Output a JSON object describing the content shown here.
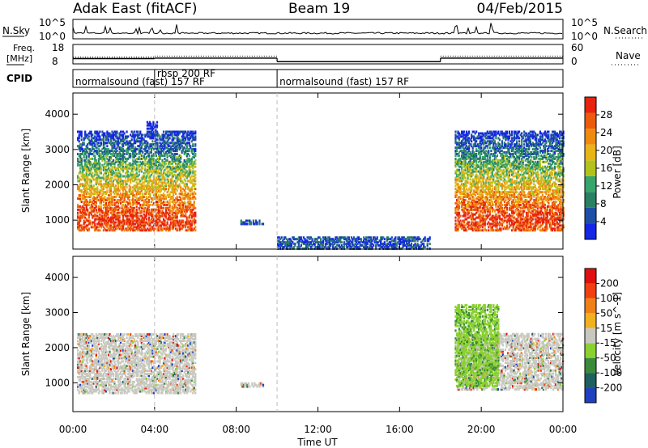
{
  "header": {
    "station": "Adak East (fitACF)",
    "beam": "Beam 19",
    "date": "04/Feb/2015"
  },
  "time_axis": {
    "label": "Time UT",
    "ticks": [
      "00:00",
      "04:00",
      "08:00",
      "12:00",
      "16:00",
      "20:00",
      "00:00"
    ],
    "range_hours": [
      0,
      24
    ]
  },
  "panels": {
    "nsky": {
      "left_label": "N.Sky",
      "left_ticks": [
        "10^5",
        "10^0"
      ],
      "right_label": "N.Search",
      "right_ticks": [
        "10^5",
        "10^0"
      ]
    },
    "freq": {
      "left_label_1": "Freq.",
      "left_label_2": "[MHz]",
      "left_ticks": [
        "18",
        "8"
      ],
      "right_label": "Nave",
      "right_ticks": [
        "60",
        "0"
      ],
      "freq_steps": [
        {
          "t0": 0,
          "t1": 4,
          "value": 10.4
        },
        {
          "t0": 4,
          "t1": 10,
          "value": 10.7
        },
        {
          "t0": 10,
          "t1": 18,
          "value": 8.4
        },
        {
          "t0": 18,
          "t1": 24,
          "value": 10.7
        }
      ],
      "nave_steps": [
        {
          "t0": 0,
          "t1": 4,
          "value": 20
        },
        {
          "t0": 4,
          "t1": 10,
          "value": 24
        },
        {
          "t0": 10,
          "t1": 18,
          "value": 3
        },
        {
          "t0": 18,
          "t1": 24,
          "value": 24
        }
      ]
    },
    "cpid": {
      "label": "CPID",
      "segments": [
        {
          "t0": 0,
          "t1": 4,
          "text": "normalsound (fast) 157 RF"
        },
        {
          "t0": 4,
          "t1": 10,
          "text": "rbsp 200 RF"
        },
        {
          "t0": 10,
          "t1": 24,
          "text": "normalsound (fast) 157 RF"
        }
      ]
    }
  },
  "chart_data": [
    {
      "type": "heatmap",
      "name": "power",
      "ylabel": "Slant Range [km]",
      "yticks": [
        1000,
        2000,
        3000,
        4000
      ],
      "ylim": [
        180,
        4600
      ],
      "xlim": [
        0,
        24
      ],
      "colorbar": {
        "label": "Power [dB]",
        "ticks": [
          4,
          8,
          12,
          16,
          20,
          24,
          28
        ],
        "range": [
          0,
          32
        ],
        "colors": [
          "#1426e6",
          "#1e4fa6",
          "#2a8064",
          "#38a56a",
          "#b3c21a",
          "#e8b416",
          "#ef8a10",
          "#ec5a0c",
          "#e8230f"
        ]
      },
      "regions": [
        {
          "t0": 0.2,
          "t1": 6.0,
          "r0": 700,
          "r1": 3500,
          "level": 22
        },
        {
          "t0": 3.6,
          "t1": 4.1,
          "r0": 3400,
          "r1": 3800,
          "level": 10
        },
        {
          "t0": 8.2,
          "t1": 9.3,
          "r0": 880,
          "r1": 1000,
          "level": 2
        },
        {
          "t0": 10.0,
          "t1": 17.5,
          "r0": 180,
          "r1": 500,
          "level": 6
        },
        {
          "t0": 18.7,
          "t1": 24.0,
          "r0": 700,
          "r1": 3500,
          "level": 22
        }
      ]
    },
    {
      "type": "heatmap",
      "name": "velocity",
      "ylabel": "Slant Range [km]",
      "yticks": [
        1000,
        2000,
        3000,
        4000
      ],
      "ylim": [
        180,
        4600
      ],
      "xlim": [
        0,
        24
      ],
      "colorbar": {
        "label": "Velocity [m s^-1]",
        "ticks": [
          "200",
          "100",
          "50",
          "15",
          "-15",
          "-50",
          "-100",
          "-200"
        ],
        "colors": [
          "#2040c0",
          "#1f5f5f",
          "#3a8a3a",
          "#8ad030",
          "#c8c8c0",
          "#f0b020",
          "#f08018",
          "#f04010",
          "#e01010"
        ]
      },
      "regions": [
        {
          "t0": 0.2,
          "t1": 6.0,
          "r0": 700,
          "r1": 2400,
          "value": 0
        },
        {
          "t0": 18.8,
          "t1": 24.0,
          "r0": 800,
          "r1": 2400,
          "value": 0
        },
        {
          "t0": 18.7,
          "t1": 20.8,
          "r0": 900,
          "r1": 3200,
          "value": 25
        },
        {
          "t0": 8.2,
          "t1": 9.3,
          "r0": 880,
          "r1": 1000,
          "value": 0
        }
      ]
    }
  ]
}
